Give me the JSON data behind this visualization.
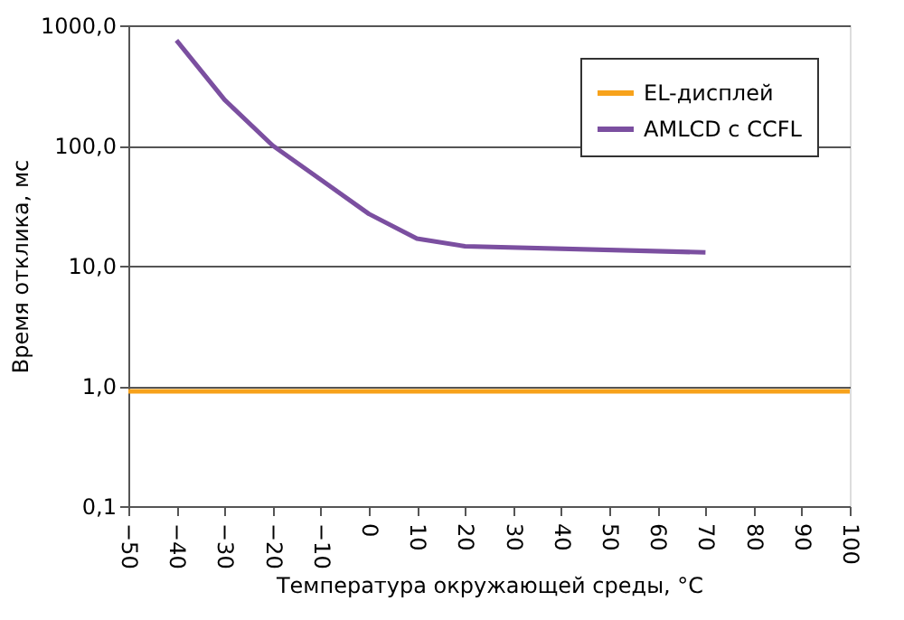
{
  "chart_data": {
    "type": "line",
    "xlabel": "Температура окружающей среды, °C",
    "ylabel": "Время отклика, мс",
    "xlim": [
      -50,
      100
    ],
    "xticks": [
      -50,
      -40,
      -30,
      -20,
      -10,
      0,
      10,
      20,
      30,
      40,
      50,
      60,
      70,
      80,
      90,
      100
    ],
    "ylim": [
      0.1,
      1000
    ],
    "yticks": [
      {
        "value": 0.1,
        "label": "0,1"
      },
      {
        "value": 1,
        "label": "1,0"
      },
      {
        "value": 10,
        "label": "10,0"
      },
      {
        "value": 100,
        "label": "100,0"
      },
      {
        "value": 1000,
        "label": "1000,0"
      }
    ],
    "log": "y",
    "grid": "y",
    "legend": "top right",
    "marker": "none",
    "line_style": "solid",
    "series": [
      {
        "name": "EL-дисплей",
        "color": "#f7a21b",
        "x": [
          -50,
          100
        ],
        "values": [
          0.9,
          0.9
        ]
      },
      {
        "name": "AMLCD с CCFL",
        "color": "#7b4fa0",
        "x": [
          -40,
          -30,
          -20,
          -10,
          0,
          10,
          20,
          70
        ],
        "values": [
          750,
          240,
          100,
          52,
          27,
          16.8,
          14.5,
          12.9
        ]
      }
    ]
  }
}
